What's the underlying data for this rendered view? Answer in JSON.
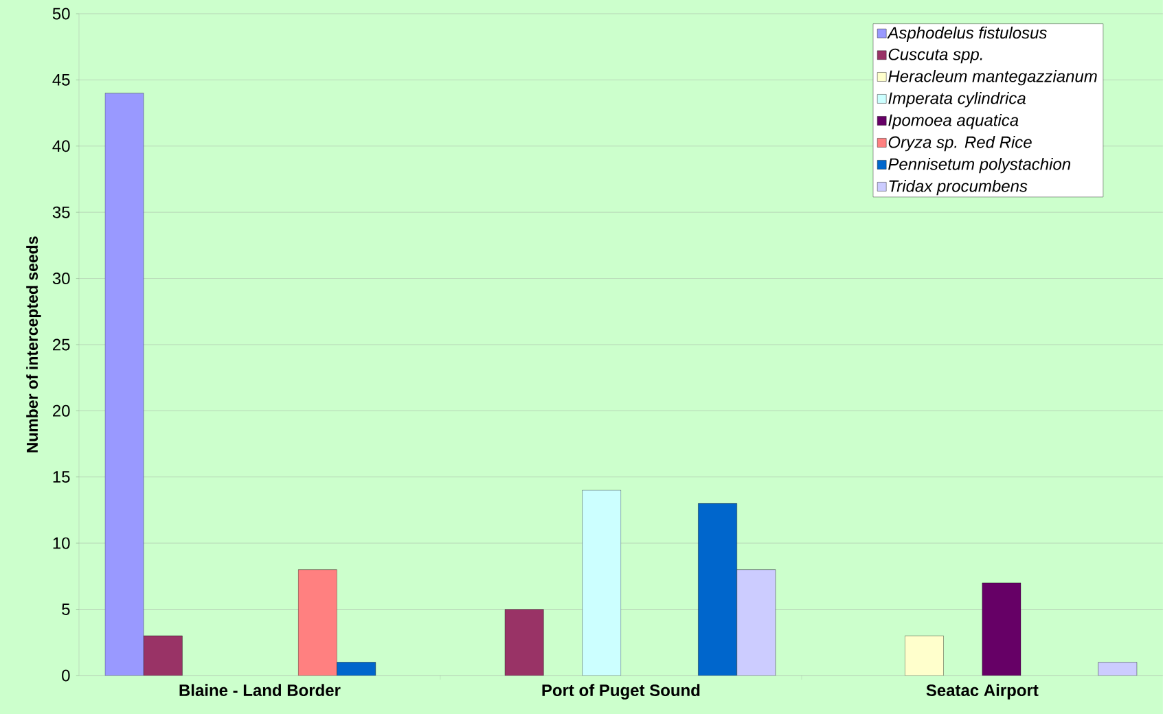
{
  "chart_data": {
    "type": "bar",
    "ylabel": "Number of intercepted seeds",
    "categories": [
      "Blaine - Land Border",
      "Port of Puget Sound",
      "Seatac Airport"
    ],
    "series": [
      {
        "name": "Asphodelus fistulosus",
        "color": "#9999ff",
        "values": [
          44,
          null,
          null
        ]
      },
      {
        "name": "Cuscuta spp.",
        "color": "#993366",
        "values": [
          3,
          5,
          null
        ]
      },
      {
        "name": "Heracleum mantegazzianum",
        "color": "#ffffcc",
        "values": [
          null,
          null,
          3
        ]
      },
      {
        "name": "Imperata cylindrica",
        "color": "#ccffff",
        "values": [
          null,
          14,
          null
        ]
      },
      {
        "name": "Ipomoea aquatica",
        "color": "#660066",
        "values": [
          null,
          null,
          7
        ]
      },
      {
        "name": "Oryza sp. Red Rice",
        "color": "#ff8080",
        "values": [
          8,
          null,
          null
        ]
      },
      {
        "name": "Pennisetum polystachion",
        "color": "#0066cc",
        "values": [
          1,
          13,
          null
        ]
      },
      {
        "name": "Tridax procumbens",
        "color": "#ccccff",
        "values": [
          null,
          8,
          1
        ]
      }
    ],
    "ylim": [
      0,
      50
    ],
    "yticks": [
      0,
      5,
      10,
      15,
      20,
      25,
      30,
      35,
      40,
      45,
      50
    ],
    "grid": "y",
    "legend": "top right"
  }
}
